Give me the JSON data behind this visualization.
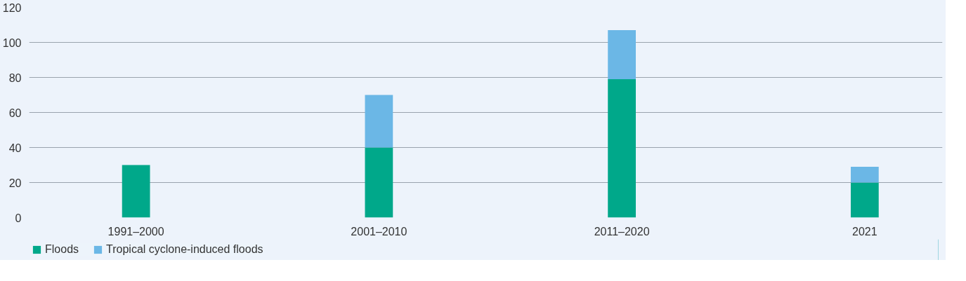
{
  "chart_data": {
    "type": "bar",
    "stacked": true,
    "categories": [
      "1991–2000",
      "2001–2010",
      "2011–2020",
      "2021"
    ],
    "series": [
      {
        "name": "Floods",
        "color": "#00a88a",
        "values": [
          30,
          40,
          79,
          20
        ]
      },
      {
        "name": "Tropical cyclone-induced floods",
        "color": "#6bb7e6",
        "values": [
          0,
          30,
          28,
          9
        ]
      }
    ],
    "ylim": [
      0,
      120
    ],
    "yticks": [
      0,
      20,
      40,
      60,
      80,
      100,
      120
    ],
    "grid": "y",
    "legend": "bottom left"
  }
}
